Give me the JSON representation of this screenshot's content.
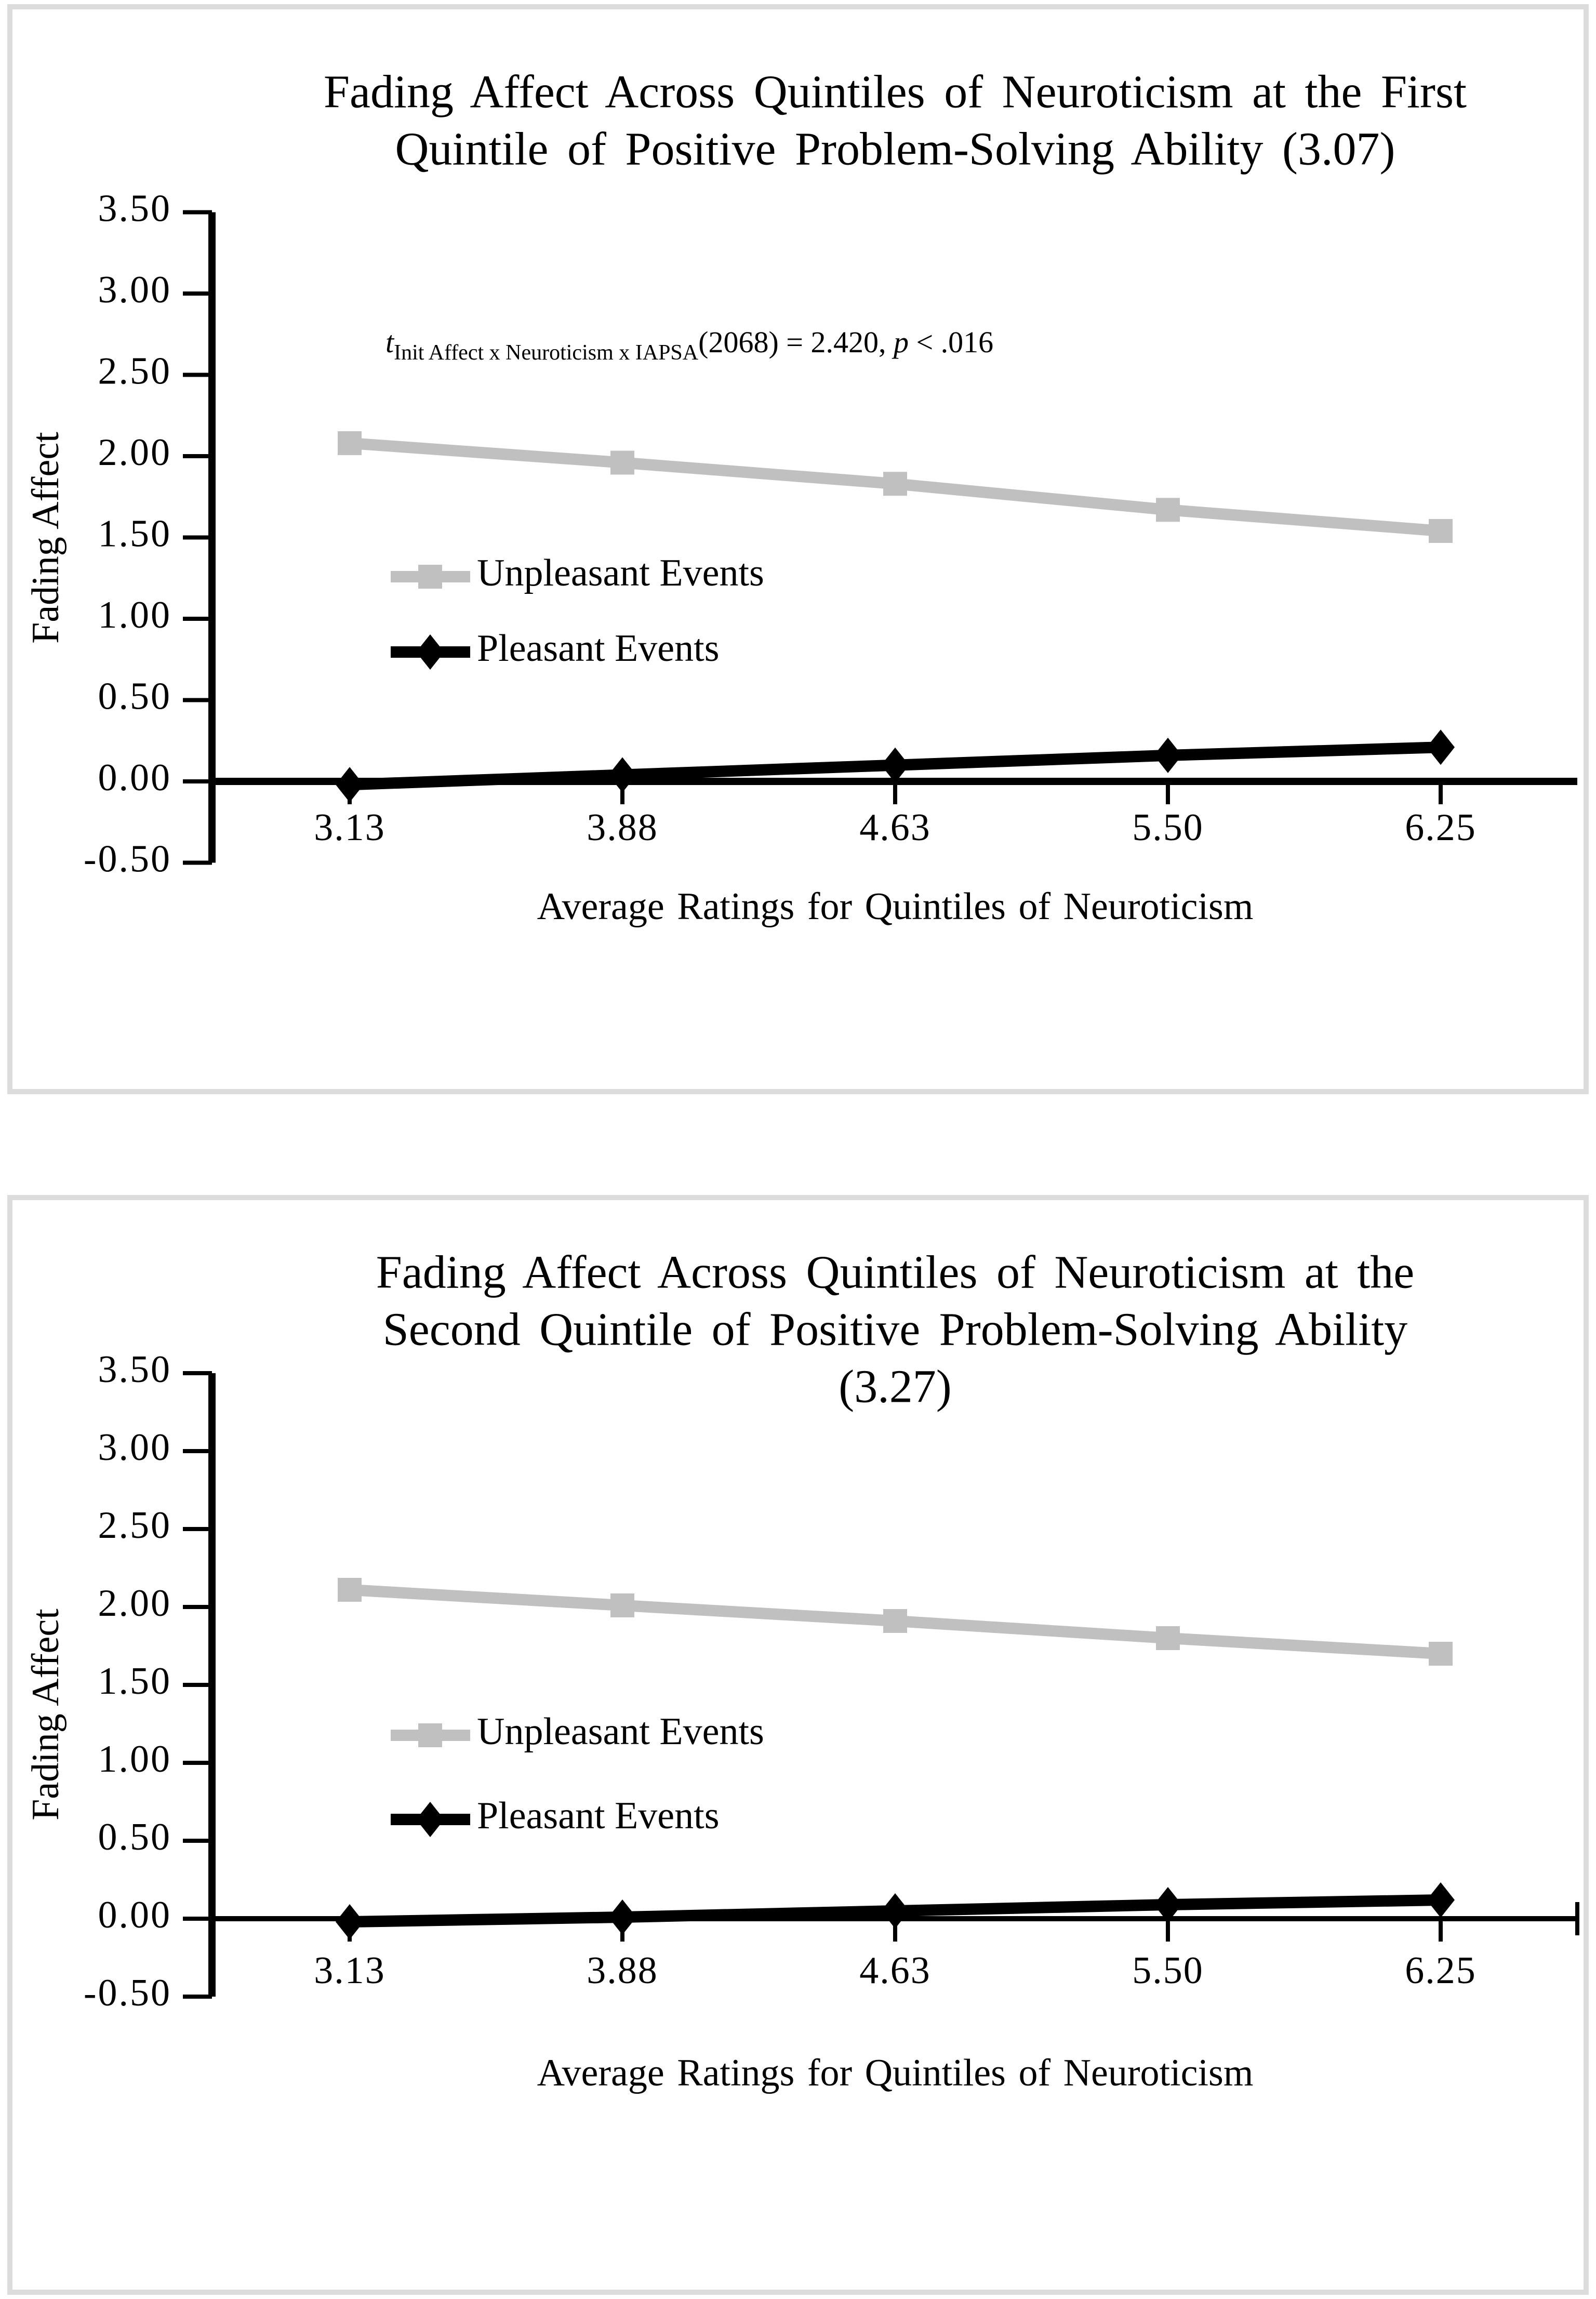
{
  "page": {
    "background": "#ffffff",
    "panel_border_color": "#dcdcdc"
  },
  "chart_data": [
    {
      "type": "line",
      "title": "Fading Affect Across Quintiles of Neuroticism at the First Quintile of Positive Problem-Solving Ability (3.07)",
      "title_lines": [
        "Fading Affect Across Quintiles of Neuroticism at the First",
        "Quintile of Positive Problem-Solving Ability (3.07)"
      ],
      "annotation": {
        "full_text": "t Init Affect x Neuroticism x IAPSA (2068) = 2.420, p < .016",
        "t_symbol": "t",
        "subscript": "Init Affect x  Neuroticism x IAPSA",
        "middle": "(2068) = 2.420, ",
        "p_symbol": "p",
        "tail": " < .016"
      },
      "xlabel": "Average Ratings for Quintiles of Neuroticism",
      "ylabel": "Fading Affect",
      "categories": [
        "3.13",
        "3.88",
        "4.63",
        "5.50",
        "6.25"
      ],
      "y_tick_labels": [
        "3.50",
        "3.00",
        "2.50",
        "2.00",
        "1.50",
        "1.00",
        "0.50",
        "0.00",
        "-0.50"
      ],
      "ylim": [
        -0.5,
        3.5
      ],
      "ytick_step": 0.5,
      "grid": false,
      "legend_position": "inside-left",
      "series": [
        {
          "name": "Unpleasant Events",
          "color": "#c0c0c0",
          "marker": "square",
          "values": [
            2.08,
            1.96,
            1.83,
            1.67,
            1.54
          ]
        },
        {
          "name": "Pleasant Events",
          "color": "#000000",
          "marker": "diamond",
          "values": [
            -0.02,
            0.04,
            0.1,
            0.16,
            0.21
          ]
        }
      ]
    },
    {
      "type": "line",
      "title": "Fading Affect Across Quintiles of Neuroticism at the Second Quintile of Positive Problem-Solving Ability (3.27)",
      "title_lines": [
        "Fading Affect Across Quintiles of Neuroticism at the",
        "Second Quintile of Positive Problem-Solving Ability",
        "(3.27)"
      ],
      "annotation": null,
      "xlabel": "Average Ratings for Quintiles of Neuroticism",
      "ylabel": "Fading Affect",
      "categories": [
        "3.13",
        "3.88",
        "4.63",
        "5.50",
        "6.25"
      ],
      "y_tick_labels": [
        "3.50",
        "3.00",
        "2.50",
        "2.00",
        "1.50",
        "1.00",
        "0.50",
        "0.00",
        "-0.50"
      ],
      "ylim": [
        -0.5,
        3.5
      ],
      "ytick_step": 0.5,
      "grid": false,
      "legend_position": "inside-left",
      "series": [
        {
          "name": "Unpleasant Events",
          "color": "#c0c0c0",
          "marker": "square",
          "values": [
            2.11,
            2.01,
            1.91,
            1.8,
            1.7
          ]
        },
        {
          "name": "Pleasant Events",
          "color": "#000000",
          "marker": "diamond",
          "values": [
            -0.02,
            0.01,
            0.05,
            0.09,
            0.12
          ]
        }
      ]
    }
  ]
}
